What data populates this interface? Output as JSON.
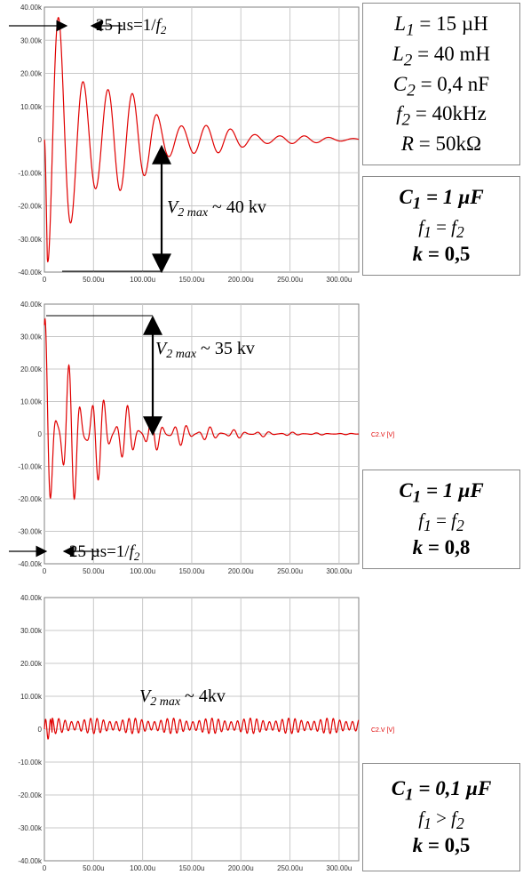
{
  "colors": {
    "signal": "#e00000",
    "grid": "#c8c8c8",
    "axis": "#808080",
    "arrow": "#000000"
  },
  "chart_data": [
    {
      "type": "line",
      "title": "",
      "x": {
        "ticks": [
          "0",
          "50.00u",
          "100.00u",
          "150.00u",
          "200.00u",
          "250.00u",
          "300.00u"
        ],
        "range_us": [
          0,
          300
        ]
      },
      "y": {
        "ticks": [
          "40.00k",
          "30.00k",
          "20.00k",
          "10.00k",
          "0",
          "-10.00k",
          "-20.00k",
          "-30.00k",
          "-40.00k"
        ],
        "range": [
          -40000,
          40000
        ]
      },
      "series_label": "",
      "series": [
        {
          "name": "",
          "amplitude": 40000,
          "decay_tau_us": 70,
          "period_us": 25,
          "peak_t_us": 25,
          "min_t_us": 15
        }
      ],
      "annotations": {
        "period": "25 µs=1/f2",
        "vmax": "V2 max ~ 40 kv"
      }
    },
    {
      "type": "line",
      "title": "",
      "x": {
        "ticks": [
          "0",
          "50.00u",
          "100.00u",
          "150.00u",
          "200.00u",
          "250.00u",
          "300.00u"
        ],
        "range_us": [
          0,
          300
        ]
      },
      "y": {
        "ticks": [
          "40.00k",
          "30.00k",
          "20.00k",
          "10.00k",
          "0",
          "-10.00k",
          "-20.00k",
          "-30.00k",
          "-40.00k"
        ],
        "range": [
          -40000,
          40000
        ]
      },
      "series_label": "C2.V [V]",
      "series": [
        {
          "name": "C2.V [V]",
          "amplitude": 36000,
          "decay_tau_us": 60,
          "period_us": 25,
          "peak_t_us": 5,
          "min_t_us": 15
        }
      ],
      "annotations": {
        "period": "25 µs=1/f2",
        "vmax": "V2 max ~ 35 kv"
      }
    },
    {
      "type": "line",
      "title": "",
      "x": {
        "ticks": [
          "0",
          "50.00u",
          "100.00u",
          "150.00u",
          "200.00u",
          "250.00u",
          "300.00u"
        ],
        "range_us": [
          0,
          300
        ]
      },
      "y": {
        "ticks": [
          "40.00k",
          "30.00k",
          "20.00k",
          "10.00k",
          "0",
          "-10.00k",
          "-20.00k",
          "-30.00k",
          "-40.00k"
        ],
        "range": [
          -40000,
          40000
        ]
      },
      "series_label": "C2.V [V]",
      "series": [
        {
          "name": "C2.V [V]",
          "amplitude": 4000,
          "decay_tau_us": 0,
          "period_us": 6.5,
          "offset": 1000
        }
      ],
      "annotations": {
        "vmax": "V2 max ~ 4kv"
      }
    }
  ],
  "params_box": [
    "L1 = 15 µH",
    "L2 = 40 mH",
    "C2 = 0,4 nF",
    "f2 = 40kHz",
    "R = 50kΩ"
  ],
  "case_boxes": [
    {
      "c1": "C1 = 1 µF",
      "f": "f1 = f2",
      "k": "k = 0,5"
    },
    {
      "c1": "C1 = 1 µF",
      "f": "f1 = f2",
      "k": "k = 0,8"
    },
    {
      "c1": "C1 = 0,1 µF",
      "f": "f1 > f2",
      "k": "k = 0,5"
    }
  ]
}
